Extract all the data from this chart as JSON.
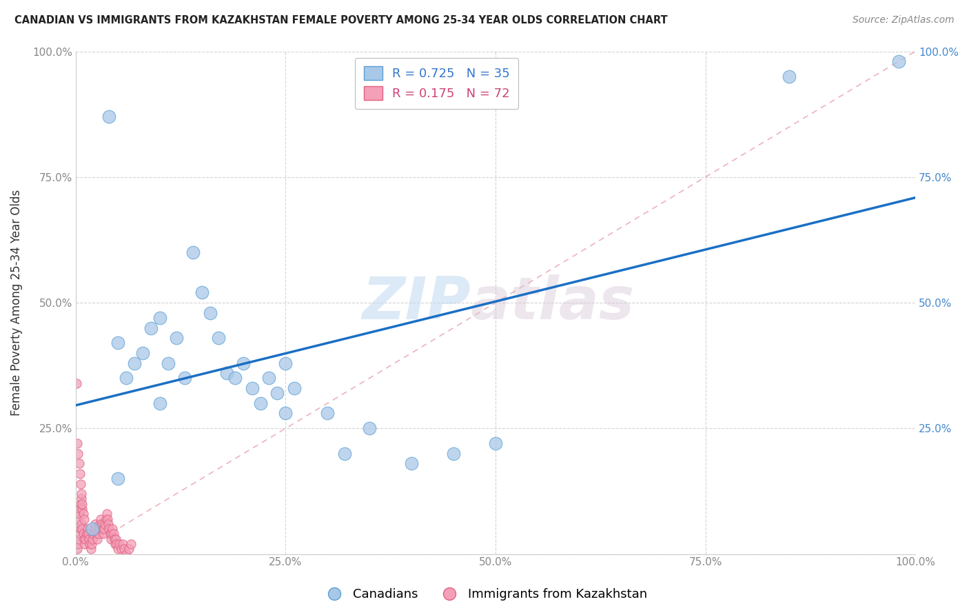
{
  "title": "CANADIAN VS IMMIGRANTS FROM KAZAKHSTAN FEMALE POVERTY AMONG 25-34 YEAR OLDS CORRELATION CHART",
  "source": "Source: ZipAtlas.com",
  "ylabel": "Female Poverty Among 25-34 Year Olds",
  "xlim": [
    0,
    1.0
  ],
  "ylim": [
    0,
    1.0
  ],
  "xticks": [
    0.0,
    0.25,
    0.5,
    0.75,
    1.0
  ],
  "xticklabels": [
    "0.0%",
    "25.0%",
    "50.0%",
    "75.0%",
    "100.0%"
  ],
  "yticks": [
    0.0,
    0.25,
    0.5,
    0.75,
    1.0
  ],
  "ytick_left_labels": [
    "",
    "25.0%",
    "50.0%",
    "75.0%",
    "100.0%"
  ],
  "ytick_right_labels": [
    "",
    "25.0%",
    "50.0%",
    "75.0%",
    "100.0%"
  ],
  "watermark_zip": "ZIP",
  "watermark_atlas": "atlas",
  "legend_blue_label": "Canadians",
  "legend_pink_label": "Immigrants from Kazakhstan",
  "R_blue": 0.725,
  "N_blue": 35,
  "R_pink": 0.175,
  "N_pink": 72,
  "blue_fill": "#a8c8e8",
  "blue_edge": "#5a9fd4",
  "pink_fill": "#f4a0b8",
  "pink_edge": "#e06080",
  "regression_blue_color": "#1a6fc4",
  "diagonal_color": "#e08090",
  "blue_point_size": 180,
  "pink_point_size": 90,
  "canadians_x": [
    0.02,
    0.04,
    0.05,
    0.05,
    0.06,
    0.07,
    0.08,
    0.09,
    0.1,
    0.1,
    0.11,
    0.12,
    0.13,
    0.14,
    0.15,
    0.16,
    0.17,
    0.18,
    0.19,
    0.2,
    0.21,
    0.22,
    0.23,
    0.24,
    0.25,
    0.25,
    0.26,
    0.3,
    0.32,
    0.35,
    0.4,
    0.45,
    0.5,
    0.85,
    0.98
  ],
  "canadians_y": [
    0.05,
    0.87,
    0.42,
    0.15,
    0.35,
    0.38,
    0.4,
    0.45,
    0.47,
    0.3,
    0.38,
    0.43,
    0.35,
    0.6,
    0.52,
    0.48,
    0.43,
    0.36,
    0.35,
    0.38,
    0.33,
    0.3,
    0.35,
    0.32,
    0.38,
    0.28,
    0.33,
    0.28,
    0.2,
    0.25,
    0.18,
    0.2,
    0.22,
    0.95,
    0.98
  ],
  "kazakh_x": [
    0.001,
    0.002,
    0.003,
    0.003,
    0.004,
    0.004,
    0.005,
    0.005,
    0.006,
    0.006,
    0.007,
    0.007,
    0.008,
    0.008,
    0.009,
    0.009,
    0.01,
    0.01,
    0.011,
    0.012,
    0.013,
    0.014,
    0.015,
    0.016,
    0.017,
    0.018,
    0.019,
    0.02,
    0.021,
    0.022,
    0.023,
    0.024,
    0.025,
    0.026,
    0.027,
    0.028,
    0.029,
    0.03,
    0.031,
    0.032,
    0.033,
    0.034,
    0.035,
    0.036,
    0.037,
    0.038,
    0.039,
    0.04,
    0.041,
    0.042,
    0.043,
    0.044,
    0.045,
    0.046,
    0.047,
    0.048,
    0.049,
    0.05,
    0.052,
    0.054,
    0.056,
    0.058,
    0.06,
    0.063,
    0.066,
    0.002,
    0.003,
    0.004,
    0.005,
    0.006,
    0.007,
    0.008
  ],
  "kazakh_y": [
    0.34,
    0.01,
    0.02,
    0.07,
    0.03,
    0.08,
    0.04,
    0.09,
    0.05,
    0.1,
    0.06,
    0.11,
    0.05,
    0.09,
    0.04,
    0.08,
    0.03,
    0.07,
    0.02,
    0.03,
    0.04,
    0.05,
    0.04,
    0.03,
    0.02,
    0.01,
    0.02,
    0.03,
    0.04,
    0.05,
    0.06,
    0.05,
    0.04,
    0.03,
    0.04,
    0.05,
    0.06,
    0.07,
    0.06,
    0.05,
    0.04,
    0.05,
    0.06,
    0.07,
    0.08,
    0.07,
    0.06,
    0.05,
    0.04,
    0.03,
    0.04,
    0.05,
    0.04,
    0.03,
    0.02,
    0.03,
    0.02,
    0.01,
    0.02,
    0.01,
    0.02,
    0.01,
    0.0,
    0.01,
    0.02,
    0.22,
    0.2,
    0.18,
    0.16,
    0.14,
    0.12,
    0.1
  ]
}
